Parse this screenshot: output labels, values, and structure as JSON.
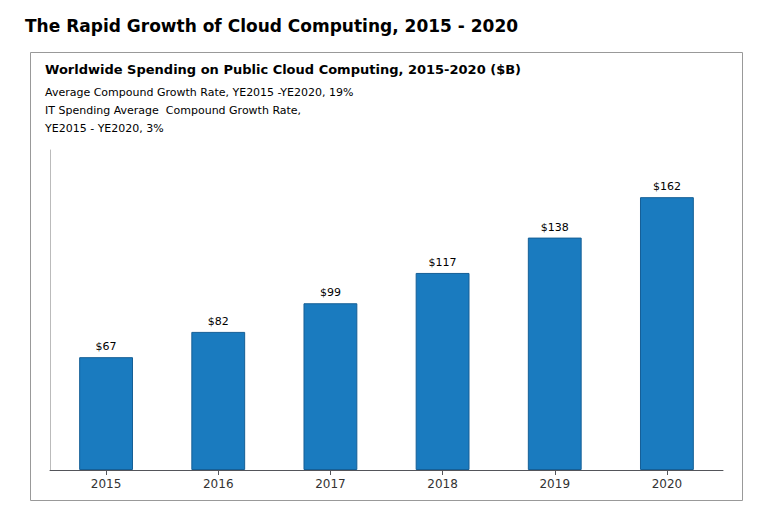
{
  "chart_data": {
    "type": "bar",
    "title": "The Rapid Growth of Cloud Computing, 2015 - 2020",
    "subtitle": "Worldwide Spending on Public Cloud Computing, 2015-2020 ($B)",
    "annotations": [
      "Average Compound Growth Rate, YE2015 -YE2020, 19%",
      "IT Spending Average  Compound Growth Rate,",
      "YE2015 - YE2020, 3%"
    ],
    "categories": [
      "2015",
      "2016",
      "2017",
      "2018",
      "2019",
      "2020"
    ],
    "values": [
      67,
      82,
      99,
      117,
      138,
      162
    ],
    "value_labels": [
      "$67",
      "$82",
      "$99",
      "$117",
      "$138",
      "$162"
    ],
    "color": "#1A7BBF",
    "ylim": [
      0,
      190
    ],
    "yticks": [],
    "grid": false,
    "data_labels": true,
    "tick_labels": "x"
  }
}
